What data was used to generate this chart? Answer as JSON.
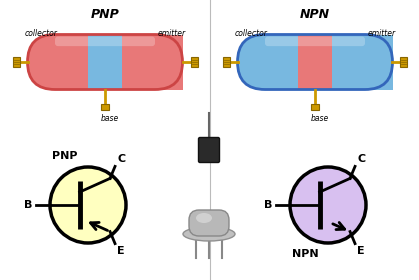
{
  "title_pnp": "PNP",
  "title_npn": "NPN",
  "pnp_colors": [
    "#e87878",
    "#78b8e0",
    "#e87878"
  ],
  "npn_colors": [
    "#78b8e0",
    "#e87878",
    "#78b8e0"
  ],
  "label_collector": "collector",
  "label_emitter": "emitter",
  "label_base": "base",
  "pnp_circle_color": "#ffffc0",
  "npn_circle_color": "#d8c0f0",
  "bg_color": "#ffffff",
  "divider_color": "#bbbbbb",
  "pnp_outline": "#cc4444",
  "npn_outline": "#3366bb",
  "lead_color": "#cc9900",
  "lead_dark": "#886600"
}
